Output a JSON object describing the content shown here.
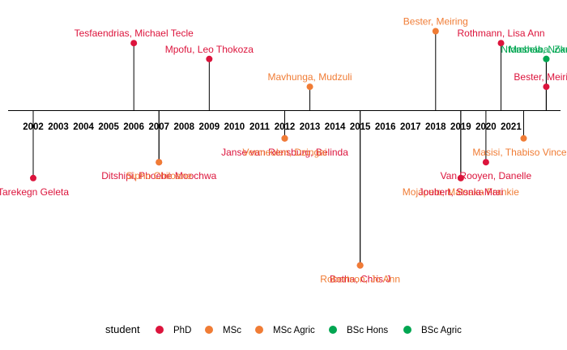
{
  "chart_data": {
    "type": "scatter",
    "subtype": "timeline",
    "title": "",
    "xlabel": "",
    "ylabel": "",
    "xlim": [
      2001,
      2022.5
    ],
    "ticks": [
      "2002",
      "2003",
      "2004",
      "2005",
      "2006",
      "2007",
      "2008",
      "2009",
      "2010",
      "2011",
      "2012",
      "2013",
      "2014",
      "2015",
      "2016",
      "2017",
      "2018",
      "2019",
      "2020",
      "2021"
    ],
    "legend": {
      "title": "student",
      "position": "bottom",
      "entries": [
        {
          "label": "PhD",
          "color": "#dc143c"
        },
        {
          "label": "MSc",
          "color": "#f07c35"
        },
        {
          "label": "MSc Agric",
          "color": "#f07c35"
        },
        {
          "label": "BSc Hons",
          "color": "#00a651"
        },
        {
          "label": "BSc Agric",
          "color": "#00a651"
        }
      ]
    },
    "colors": {
      "PhD": "#dc143c",
      "MSc": "#f07c35",
      "MSc Agric": "#f07c35",
      "BSc Hons": "#00a651",
      "BSc Agric": "#00a651"
    },
    "events": [
      {
        "name": "Tarekegn Geleta",
        "year": 2002.0,
        "level": -1.7,
        "student": "PhD"
      },
      {
        "name": "Tesfaendrias, Michael Tecle",
        "year": 2006.0,
        "level": 1.7,
        "student": "PhD"
      },
      {
        "name": "Ditshipi, Phoebe Moochwa",
        "year": 2007.0,
        "level": -1.3,
        "student": "PhD"
      },
      {
        "name": "Sipho Chiloane",
        "year": 2007.0,
        "level": -1.3,
        "student": "MSc"
      },
      {
        "name": "Mpofu, Leo Thokoza",
        "year": 2009.0,
        "level": 1.3,
        "student": "PhD"
      },
      {
        "name": "Janse van Rensburg, Belinda",
        "year": 2012.0,
        "level": -0.7,
        "student": "PhD"
      },
      {
        "name": "Vermeulen, Dzingai",
        "year": 2012.0,
        "level": -0.7,
        "student": "MSc Agric"
      },
      {
        "name": "Mavhunga, Mudzuli",
        "year": 2013.0,
        "level": 0.6,
        "student": "MSc"
      },
      {
        "name": "Botha, Chris J",
        "year": 2015.0,
        "level": -3.9,
        "student": "PhD"
      },
      {
        "name": "Robertson, Jo Ann",
        "year": 2015.0,
        "level": -3.9,
        "student": "MSc"
      },
      {
        "name": "Bester, Meiring",
        "year": 2018.0,
        "level": 2.0,
        "student": "MSc"
      },
      {
        "name": "Mojapelo, Matsaka Frankie",
        "year": 2019.0,
        "level": -1.7,
        "student": "MSc"
      },
      {
        "name": "Joubert, Sonia-Mari",
        "year": 2019.0,
        "level": -1.7,
        "student": "PhD"
      },
      {
        "name": "Van Rooyen, Danelle",
        "year": 2020.0,
        "level": -1.3,
        "student": "PhD"
      },
      {
        "name": "Rothmann, Lisa Ann",
        "year": 2020.6,
        "level": 1.7,
        "student": "PhD"
      },
      {
        "name": "Masisi, Thabiso Vincent",
        "year": 2021.5,
        "level": -0.7,
        "student": "MSc"
      },
      {
        "name": "Bester, Meiring",
        "year": 2022.4,
        "level": 0.6,
        "student": "PhD"
      },
      {
        "name": "Mashaba, Zanele",
        "year": 2022.4,
        "level": 1.3,
        "student": "BSc Hons"
      },
      {
        "name": "Ntombela, Nokuthula",
        "year": 2022.4,
        "level": 1.3,
        "student": "BSc Agric"
      }
    ]
  }
}
